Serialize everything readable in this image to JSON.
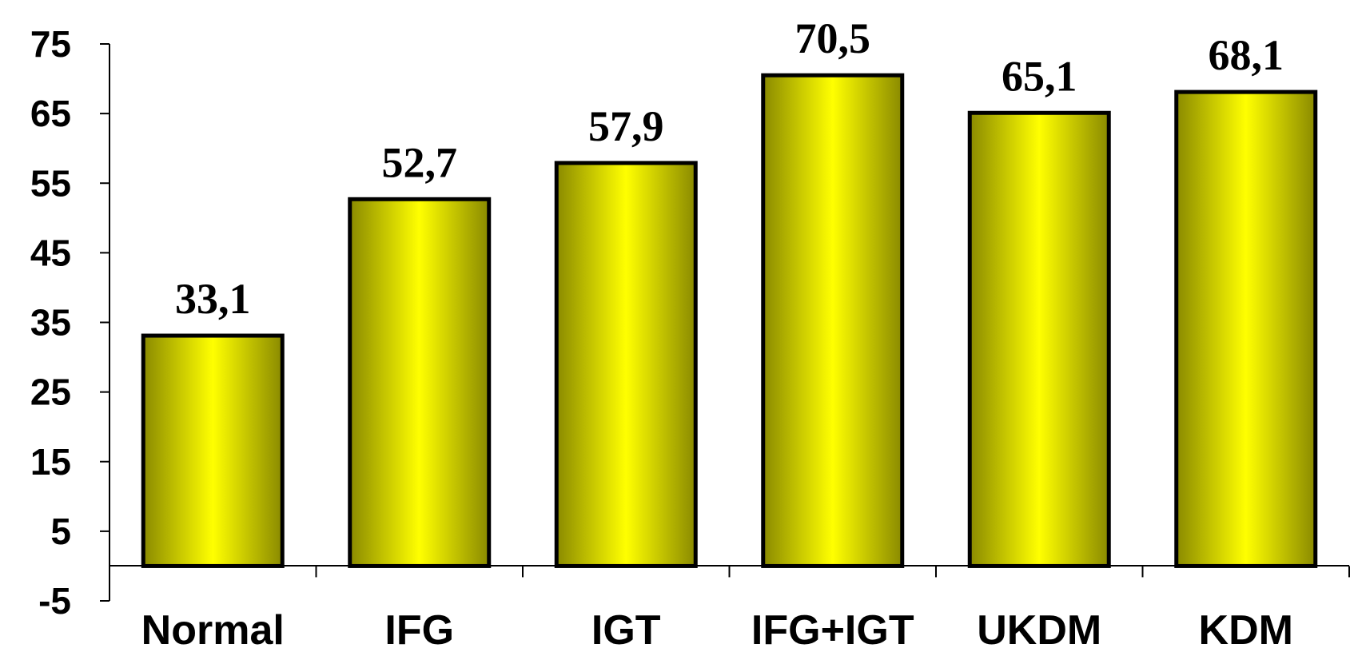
{
  "chart_data": {
    "type": "bar",
    "categories": [
      "Normal",
      "IFG",
      "IGT",
      "IFG+IGT",
      "UKDM",
      "KDM"
    ],
    "values": [
      33.1,
      52.7,
      57.9,
      70.5,
      65.1,
      68.1
    ],
    "value_labels": [
      "33,1",
      "52,7",
      "57,9",
      "70,5",
      "65,1",
      "68,1"
    ],
    "ylim": [
      -5,
      75
    ],
    "yticks": [
      "-5",
      "5",
      "15",
      "25",
      "35",
      "45",
      "55",
      "65",
      "75"
    ],
    "baseline": 0,
    "grid": false,
    "legend": "none",
    "colors": {
      "bar_edge": "#8a8a00",
      "bar_center": "#ffff00",
      "bar_stroke": "#000000"
    }
  }
}
